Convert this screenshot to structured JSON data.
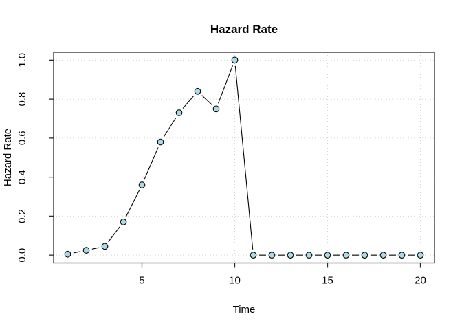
{
  "page": {
    "background": "#ffffff"
  },
  "chart_data": {
    "type": "line",
    "title": "Hazard Rate",
    "xlabel": "Time",
    "ylabel": "Hazard Rate",
    "x": [
      1,
      2,
      3,
      4,
      5,
      6,
      7,
      8,
      9,
      10,
      11,
      12,
      13,
      14,
      15,
      16,
      17,
      18,
      19,
      20
    ],
    "y": [
      0.005,
      0.025,
      0.045,
      0.17,
      0.36,
      0.58,
      0.73,
      0.84,
      0.75,
      1.0,
      0.0,
      0.0,
      0.0,
      0.0,
      0.0,
      0.0,
      0.0,
      0.0,
      0.0,
      0.0
    ],
    "xticks": [
      {
        "label": "5",
        "value": 5
      },
      {
        "label": "10",
        "value": 10
      },
      {
        "label": "15",
        "value": 15
      },
      {
        "label": "20",
        "value": 20
      }
    ],
    "yticks": [
      {
        "label": "0.0",
        "value": 0.0
      },
      {
        "label": "0.2",
        "value": 0.2
      },
      {
        "label": "0.4",
        "value": 0.4
      },
      {
        "label": "0.6",
        "value": 0.6
      },
      {
        "label": "0.8",
        "value": 0.8
      },
      {
        "label": "1.0",
        "value": 1.0
      }
    ],
    "xlim": [
      0.24,
      20.76
    ],
    "ylim": [
      -0.04,
      1.04
    ],
    "grid": true,
    "legend_position": "none",
    "marker_shape": "filled-circle",
    "marker_fill": "#ADD8E6",
    "marker_stroke": "#000000",
    "line_color": "#000000",
    "grid_color": "#d6d6d6",
    "box_color": "#2b2b2b",
    "tick_color": "#2b2b2b"
  }
}
